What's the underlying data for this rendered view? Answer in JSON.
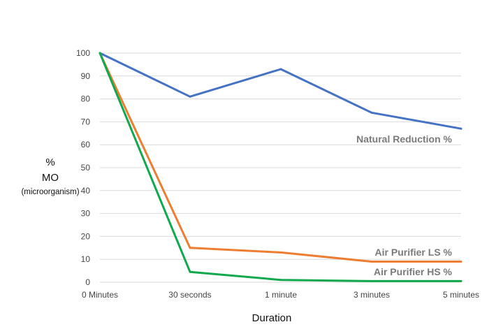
{
  "chart_data": {
    "type": "line",
    "categories": [
      "0 Minutes",
      "30 seconds",
      "1 minute",
      "3 minutes",
      "5 minutes"
    ],
    "xlabel": "Duration",
    "ylabel": [
      "%",
      "MO",
      "(microorganism)"
    ],
    "ylim": [
      0,
      100
    ],
    "yticks": [
      0,
      10,
      20,
      30,
      40,
      50,
      60,
      70,
      80,
      90,
      100
    ],
    "grid": true,
    "series": [
      {
        "name": "Natural Reduction %",
        "color": "#4472C4",
        "values": [
          100,
          81,
          93,
          74,
          67
        ]
      },
      {
        "name": "Air Purifier LS %",
        "color": "#ED7D31",
        "values": [
          100,
          15,
          13,
          9,
          9
        ]
      },
      {
        "name": "Air Purifier HS %",
        "color": "#12A84E",
        "values": [
          100,
          4.5,
          1,
          0.5,
          0.5
        ]
      }
    ]
  }
}
